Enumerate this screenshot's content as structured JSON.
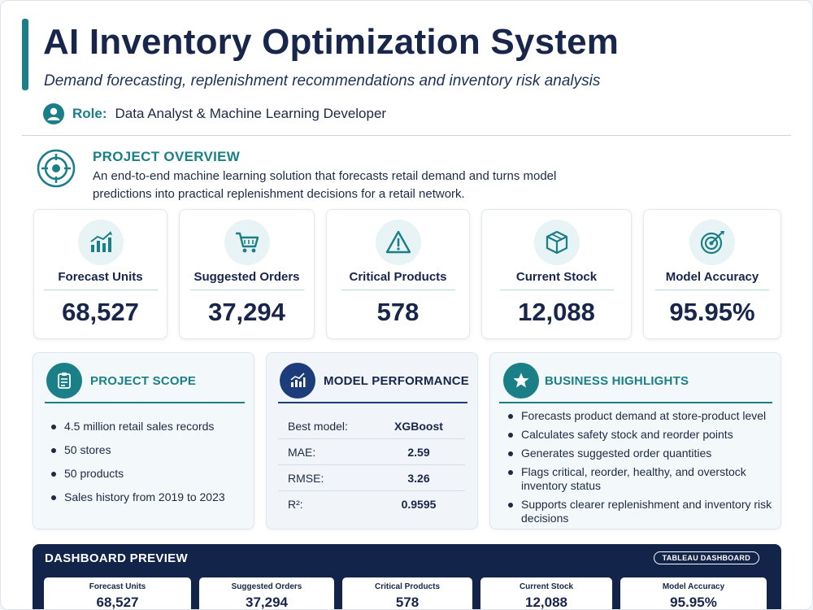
{
  "header": {
    "title": "AI Inventory Optimization System",
    "subtitle": "Demand forecasting, replenishment recommendations and inventory risk analysis",
    "role_label": "Role:",
    "role_value": "Data Analyst & Machine Learning Developer"
  },
  "overview": {
    "title": "PROJECT OVERVIEW",
    "text": "An end-to-end machine learning solution that forecasts retail demand and turns model predictions into practical replenishment decisions for a retail network."
  },
  "kpis": [
    {
      "label": "Forecast Units",
      "value": "68,527",
      "icon": "bar-chart-icon"
    },
    {
      "label": "Suggested Orders",
      "value": "37,294",
      "icon": "shopping-cart-icon"
    },
    {
      "label": "Critical Products",
      "value": "578",
      "icon": "warning-icon"
    },
    {
      "label": "Current Stock",
      "value": "12,088",
      "icon": "box-icon"
    },
    {
      "label": "Model Accuracy",
      "value": "95.95%",
      "icon": "target-icon"
    }
  ],
  "scope": {
    "title": "PROJECT SCOPE",
    "items": [
      "4.5 million retail sales records",
      "50 stores",
      "50 products",
      "Sales history from 2019 to 2023"
    ]
  },
  "model": {
    "title": "MODEL PERFORMANCE",
    "metrics": [
      {
        "name": "Best model:",
        "value": "XGBoost"
      },
      {
        "name": "MAE:",
        "value": "2.59"
      },
      {
        "name": "RMSE:",
        "value": "3.26"
      },
      {
        "name": "R²:",
        "value": "0.9595"
      }
    ]
  },
  "business": {
    "title": "BUSINESS HIGHLIGHTS",
    "items": [
      "Forecasts product demand at store-product level",
      "Calculates safety stock and reorder points",
      "Generates suggested order quantities",
      "Flags critical, reorder, healthy, and overstock inventory status",
      "Supports clearer replenishment and inventory risk decisions"
    ]
  },
  "dashboard": {
    "title": "DASHBOARD PREVIEW",
    "badge": "TABLEAU DASHBOARD",
    "cards": [
      {
        "label": "Forecast Units",
        "value": "68,527"
      },
      {
        "label": "Suggested Orders",
        "value": "37,294"
      },
      {
        "label": "Critical Products",
        "value": "578"
      },
      {
        "label": "Current Stock",
        "value": "12,088"
      },
      {
        "label": "Model Accuracy",
        "value": "95.95%"
      }
    ]
  },
  "colors": {
    "teal": "#1a7f86",
    "navy": "#17264a",
    "dashboard_bg": "#13244a"
  }
}
